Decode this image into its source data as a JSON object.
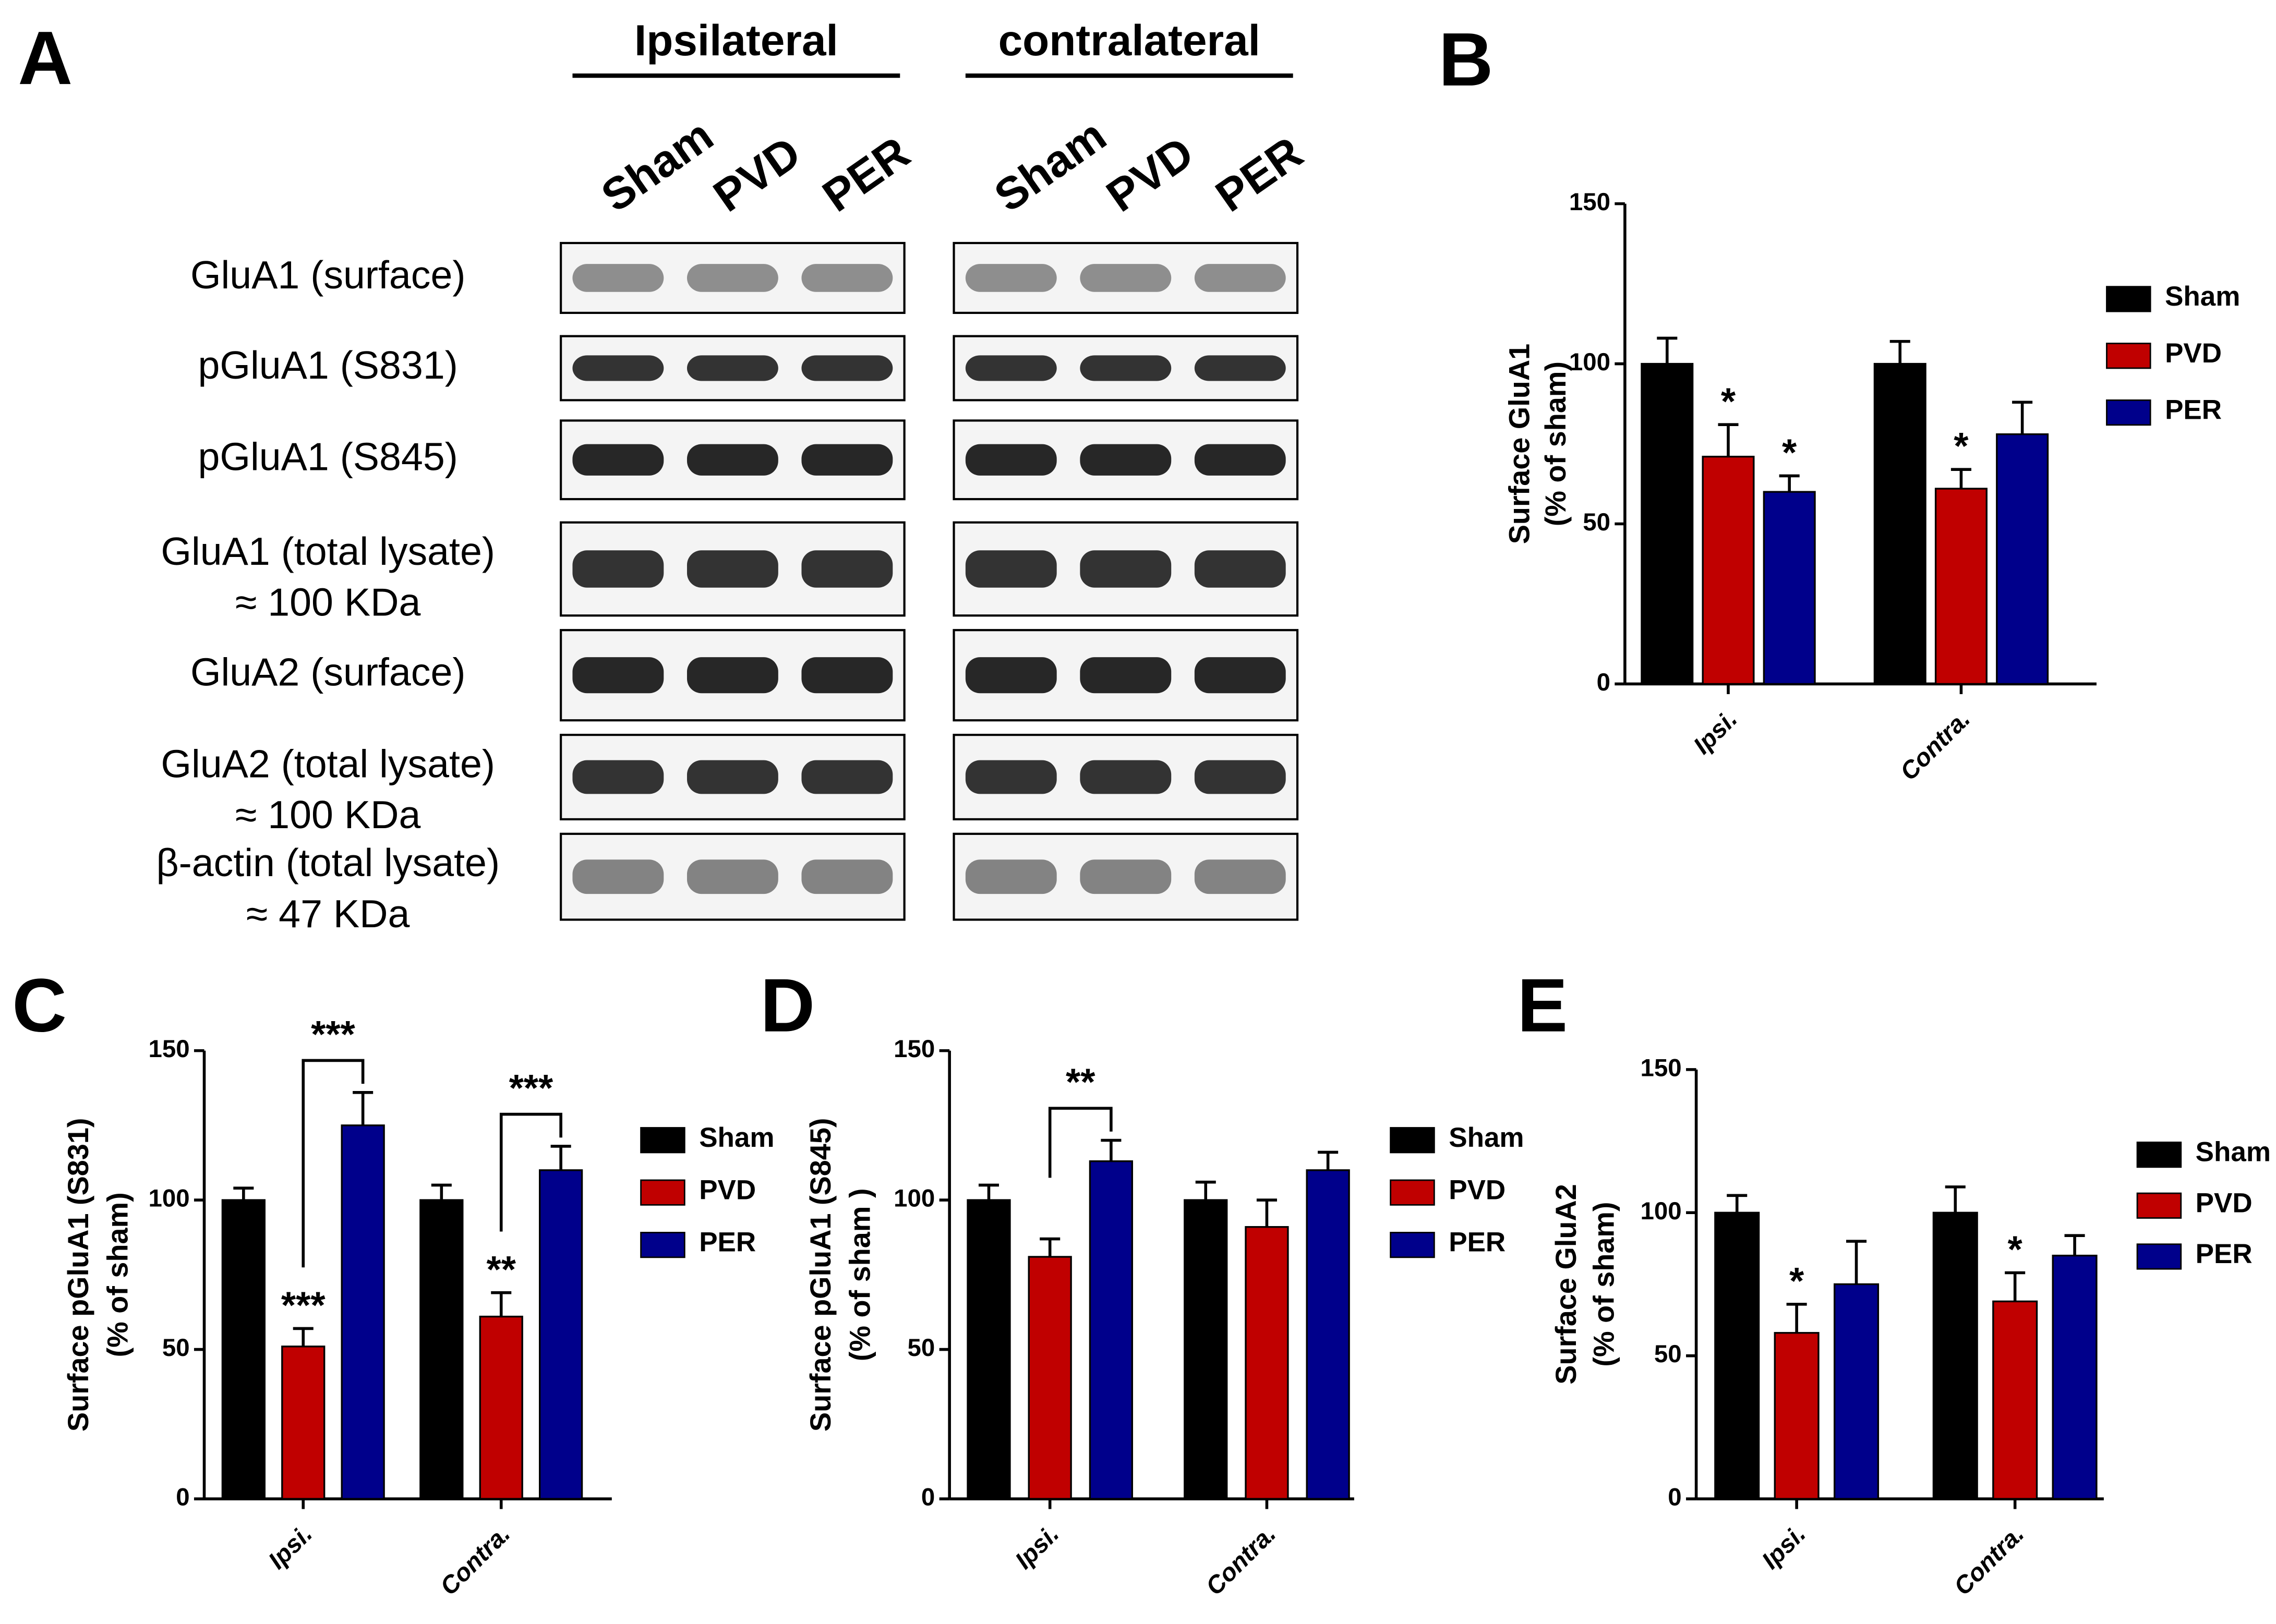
{
  "blot": {
    "panel": "A",
    "groups": [
      "Ipsilateral",
      "contralateral"
    ],
    "lanes": [
      "Sham",
      "PVD",
      "PER"
    ],
    "rows": [
      [
        "GluA1 (surface)"
      ],
      [
        "pGluA1 (S831)"
      ],
      [
        "pGluA1 (S845)"
      ],
      [
        "GluA1 (total lysate)",
        "≈ 100 KDa"
      ],
      [
        "GluA2 (surface)"
      ],
      [
        "GluA2 (total lysate)",
        "≈ 100 KDa"
      ],
      [
        "β-actin (total lysate)",
        "≈ 47 KDa"
      ]
    ]
  },
  "chart_data": [
    {
      "type": "bar",
      "panel": "B",
      "ylabel": [
        "Surface GluA1",
        "(% of sham)"
      ],
      "categories": [
        "Ipsi.",
        "Contra."
      ],
      "ylim": [
        0,
        150
      ],
      "yticks": [
        0,
        50,
        100,
        150
      ],
      "series": [
        {
          "name": "Sham",
          "color": "#000000",
          "values": [
            100,
            100
          ],
          "errors": [
            8,
            7
          ],
          "significance": [
            null,
            null
          ]
        },
        {
          "name": "PVD",
          "color": "#c00000",
          "values": [
            71,
            61
          ],
          "errors": [
            10,
            6
          ],
          "significance": [
            "*",
            "*"
          ]
        },
        {
          "name": "PER",
          "color": "#00008b",
          "values": [
            60,
            78
          ],
          "errors": [
            5,
            10
          ],
          "significance": [
            "*",
            null
          ]
        }
      ],
      "brackets": [
        null,
        null
      ]
    },
    {
      "type": "bar",
      "panel": "C",
      "ylabel": [
        "Surface pGluA1 (S831)",
        "(% of sham)"
      ],
      "categories": [
        "Ipsi.",
        "Contra."
      ],
      "ylim": [
        0,
        150
      ],
      "yticks": [
        0,
        50,
        100,
        150
      ],
      "series": [
        {
          "name": "Sham",
          "color": "#000000",
          "values": [
            100,
            100
          ],
          "errors": [
            4,
            5
          ],
          "significance": [
            null,
            null
          ]
        },
        {
          "name": "PVD",
          "color": "#c00000",
          "values": [
            51,
            61
          ],
          "errors": [
            6,
            8
          ],
          "significance": [
            "***",
            "**"
          ]
        },
        {
          "name": "PER",
          "color": "#00008b",
          "values": [
            125,
            110
          ],
          "errors": [
            11,
            8
          ],
          "significance": [
            null,
            null
          ]
        }
      ],
      "brackets": [
        "***",
        "***"
      ]
    },
    {
      "type": "bar",
      "panel": "D",
      "ylabel": [
        "Surface pGluA1 (S845)",
        "(% of sham )"
      ],
      "categories": [
        "Ipsi.",
        "Contra."
      ],
      "ylim": [
        0,
        150
      ],
      "yticks": [
        0,
        50,
        100,
        150
      ],
      "series": [
        {
          "name": "Sham",
          "color": "#000000",
          "values": [
            100,
            100
          ],
          "errors": [
            5,
            6
          ],
          "significance": [
            null,
            null
          ]
        },
        {
          "name": "PVD",
          "color": "#c00000",
          "values": [
            81,
            91
          ],
          "errors": [
            6,
            9
          ],
          "significance": [
            null,
            null
          ]
        },
        {
          "name": "PER",
          "color": "#00008b",
          "values": [
            113,
            110
          ],
          "errors": [
            7,
            6
          ],
          "significance": [
            null,
            null
          ]
        }
      ],
      "brackets": [
        "**",
        null
      ]
    },
    {
      "type": "bar",
      "panel": "E",
      "ylabel": [
        "Surface GluA2",
        "(% of sham)"
      ],
      "categories": [
        "Ipsi.",
        "Contra."
      ],
      "ylim": [
        0,
        150
      ],
      "yticks": [
        0,
        50,
        100,
        150
      ],
      "series": [
        {
          "name": "Sham",
          "color": "#000000",
          "values": [
            100,
            100
          ],
          "errors": [
            6,
            9
          ],
          "significance": [
            null,
            null
          ]
        },
        {
          "name": "PVD",
          "color": "#c00000",
          "values": [
            58,
            69
          ],
          "errors": [
            10,
            10
          ],
          "significance": [
            "*",
            "*"
          ]
        },
        {
          "name": "PER",
          "color": "#00008b",
          "values": [
            75,
            85
          ],
          "errors": [
            15,
            7
          ],
          "significance": [
            null,
            null
          ]
        }
      ],
      "brackets": [
        null,
        null
      ]
    }
  ]
}
